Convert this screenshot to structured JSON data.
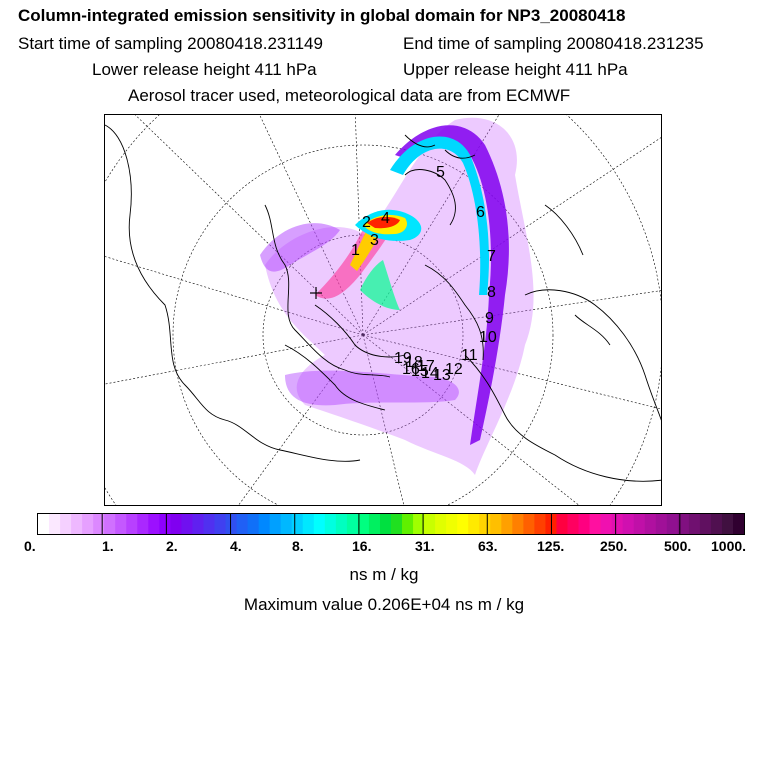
{
  "header": {
    "title": "Column-integrated emission sensitivity in global domain for NP3_20080418",
    "start_label": "Start time of sampling 20080418.231149",
    "end_label": "End time of sampling 20080418.231235",
    "lower_label": "Lower release height  411 hPa",
    "upper_label": "Upper release height  411 hPa",
    "tracer_note": "Aerosol tracer used, meteorological data are from ECMWF"
  },
  "map": {
    "trajectory_labels": [
      "1",
      "2",
      "3",
      "4",
      "5",
      "6",
      "7",
      "8",
      "9",
      "10",
      "11",
      "12",
      "13",
      "14",
      "15",
      "16",
      "17",
      "18",
      "19"
    ],
    "colors": {
      "plume_outer": "#cc66ff",
      "plume_mid": "#8800ee",
      "plume_core": "#00e5ff",
      "plume_hot": "#ff2200",
      "plume_warm": "#ffee00",
      "coast": "#000000"
    }
  },
  "colorbar": {
    "tick_labels": [
      "0.",
      "1.",
      "2.",
      "4.",
      "8.",
      "16.",
      "31.",
      "63.",
      "125.",
      "250.",
      "500.",
      "1000."
    ],
    "colors": [
      "#ffffff",
      "#fbe8ff",
      "#f5d0ff",
      "#eeb8ff",
      "#e6a0ff",
      "#dc88ff",
      "#d070ff",
      "#c458ff",
      "#b840ff",
      "#aa28ff",
      "#9c10ff",
      "#8e00ff",
      "#8000f0",
      "#7010f0",
      "#6020f0",
      "#5030f0",
      "#4040f0",
      "#3050f0",
      "#2060f5",
      "#1070f8",
      "#0088ff",
      "#00a0ff",
      "#00b8ff",
      "#00d0ff",
      "#00e8ff",
      "#00ffff",
      "#00ffe0",
      "#00ffc0",
      "#00ffa0",
      "#00ff80",
      "#00f060",
      "#00e040",
      "#20e020",
      "#60f000",
      "#a0ff00",
      "#c8ff00",
      "#e0ff00",
      "#f0ff00",
      "#ffff00",
      "#ffea00",
      "#ffd400",
      "#ffbf00",
      "#ffa000",
      "#ff8000",
      "#ff6000",
      "#ff4000",
      "#ff2000",
      "#ff0040",
      "#ff0060",
      "#ff0080",
      "#ff10a0",
      "#f010b0",
      "#e010b0",
      "#d010b0",
      "#c010a8",
      "#b010a0",
      "#a01098",
      "#901090",
      "#801080",
      "#701070",
      "#601060",
      "#501050",
      "#401040",
      "#300030"
    ],
    "unit_label": "ns m / kg",
    "max_label": "Maximum value  0.206E+04 ns m / kg"
  }
}
